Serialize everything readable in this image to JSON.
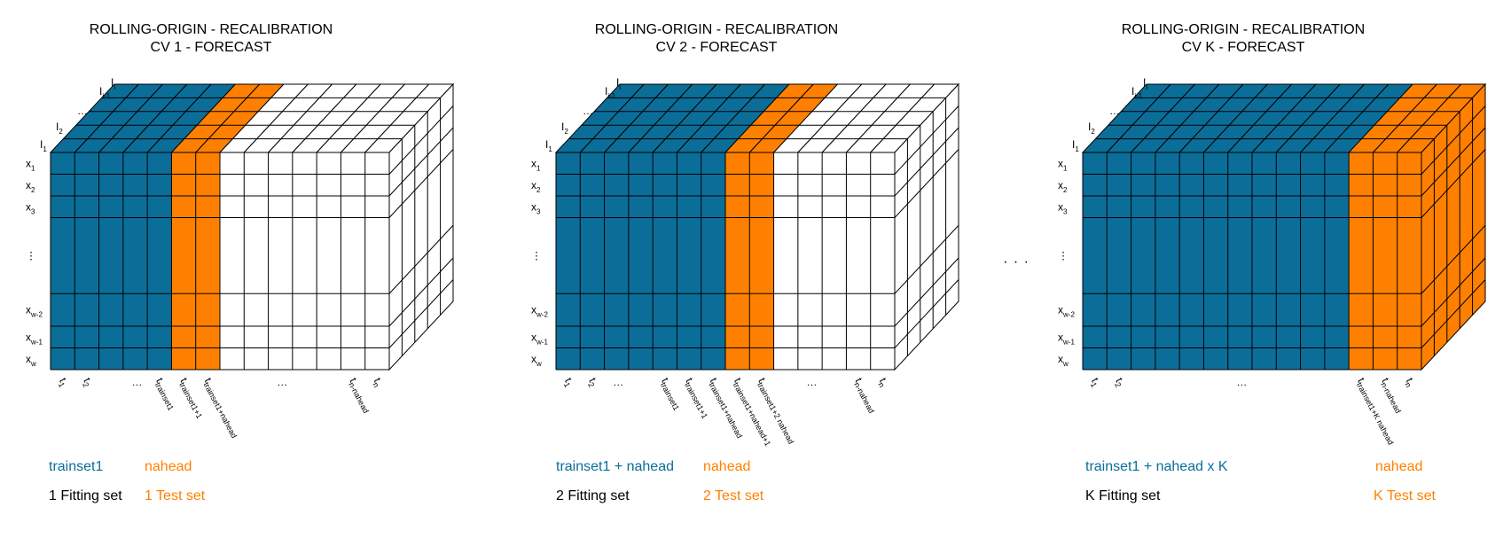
{
  "colors": {
    "train": "#0B6E99",
    "test": "#FF8000",
    "blank": "#FFFFFF",
    "line": "#000000"
  },
  "ellipsis": "…",
  "between_panels": "· · ·",
  "panels": [
    {
      "id": "cv1",
      "title_line1": "ROLLING-ORIGIN - RECALIBRATION",
      "title_line2": "CV 1 - FORECAST",
      "col_colors": [
        "train",
        "train",
        "train",
        "train",
        "train",
        "test",
        "test",
        "blank",
        "blank",
        "blank",
        "blank",
        "blank",
        "blank",
        "blank"
      ],
      "depth_labels": [
        {
          "main": "I",
          "sub": "i"
        },
        {
          "main": "I",
          "sub": "i-1"
        },
        {
          "main": "…",
          "sub": ""
        },
        {
          "main": "I",
          "sub": "2"
        },
        {
          "main": "I",
          "sub": "1"
        }
      ],
      "row_labels": [
        {
          "main": "x",
          "sub": "1"
        },
        {
          "main": "x",
          "sub": "2"
        },
        {
          "main": "x",
          "sub": "3"
        },
        {
          "main": "⋮",
          "sub": ""
        },
        {
          "main": "x",
          "sub": "w-2"
        },
        {
          "main": "x",
          "sub": "w-1"
        },
        {
          "main": "x",
          "sub": "w"
        }
      ],
      "time_labels": [
        {
          "col": 0,
          "main": "t",
          "sub": "1"
        },
        {
          "col": 1,
          "main": "t",
          "sub": "2"
        },
        {
          "col": 3,
          "main": "…",
          "sub": ""
        },
        {
          "col": 4,
          "main": "t",
          "sub": "trainset1"
        },
        {
          "col": 5,
          "main": "t",
          "sub": "trainset1+1"
        },
        {
          "col": 6,
          "main": "t",
          "sub": "trainset1+nahead"
        },
        {
          "col": 9,
          "main": "…",
          "sub": ""
        },
        {
          "col": 12,
          "main": "t",
          "sub": "n-nahead"
        },
        {
          "col": 13,
          "main": "t",
          "sub": "n"
        }
      ],
      "legend": {
        "train_label": "trainset1",
        "test_label": "nahead",
        "fit_label": "1 Fitting set",
        "test_set_label": "1 Test set"
      }
    },
    {
      "id": "cv2",
      "title_line1": "ROLLING-ORIGIN - RECALIBRATION",
      "title_line2": "CV 2 - FORECAST",
      "col_colors": [
        "train",
        "train",
        "train",
        "train",
        "train",
        "train",
        "train",
        "test",
        "test",
        "blank",
        "blank",
        "blank",
        "blank",
        "blank"
      ],
      "depth_labels": [
        {
          "main": "I",
          "sub": "i"
        },
        {
          "main": "I",
          "sub": "i-1"
        },
        {
          "main": "…",
          "sub": ""
        },
        {
          "main": "I",
          "sub": "2"
        },
        {
          "main": "I",
          "sub": "1"
        }
      ],
      "row_labels": [
        {
          "main": "x",
          "sub": "1"
        },
        {
          "main": "x",
          "sub": "2"
        },
        {
          "main": "x",
          "sub": "3"
        },
        {
          "main": "⋮",
          "sub": ""
        },
        {
          "main": "x",
          "sub": "w-2"
        },
        {
          "main": "x",
          "sub": "w-1"
        },
        {
          "main": "x",
          "sub": "w"
        }
      ],
      "time_labels": [
        {
          "col": 0,
          "main": "t",
          "sub": "1"
        },
        {
          "col": 1,
          "main": "t",
          "sub": "2"
        },
        {
          "col": 2,
          "main": "…",
          "sub": ""
        },
        {
          "col": 4,
          "main": "t",
          "sub": "trainset1"
        },
        {
          "col": 5,
          "main": "t",
          "sub": "trainset1+1"
        },
        {
          "col": 6,
          "main": "t",
          "sub": "trainset1+nahead"
        },
        {
          "col": 7,
          "main": "t",
          "sub": "trainset1+nahead+1"
        },
        {
          "col": 8,
          "main": "t",
          "sub": "trainset1+2 nahead"
        },
        {
          "col": 10,
          "main": "…",
          "sub": ""
        },
        {
          "col": 12,
          "main": "t",
          "sub": "n-nahead"
        },
        {
          "col": 13,
          "main": "t",
          "sub": "n"
        }
      ],
      "legend": {
        "train_label": "trainset1 + nahead",
        "test_label": "nahead",
        "fit_label": "2 Fitting set",
        "test_set_label": "2 Test set"
      }
    },
    {
      "id": "cvk",
      "title_line1": "ROLLING-ORIGIN - RECALIBRATION",
      "title_line2": "CV K - FORECAST",
      "col_colors": [
        "train",
        "train",
        "train",
        "train",
        "train",
        "train",
        "train",
        "train",
        "train",
        "train",
        "train",
        "test",
        "test",
        "test"
      ],
      "depth_labels": [
        {
          "main": "I",
          "sub": "i"
        },
        {
          "main": "I",
          "sub": "i-1"
        },
        {
          "main": "…",
          "sub": ""
        },
        {
          "main": "I",
          "sub": "2"
        },
        {
          "main": "I",
          "sub": "1"
        }
      ],
      "row_labels": [
        {
          "main": "x",
          "sub": "1"
        },
        {
          "main": "x",
          "sub": "2"
        },
        {
          "main": "x",
          "sub": "3"
        },
        {
          "main": "⋮",
          "sub": ""
        },
        {
          "main": "x",
          "sub": "w-2"
        },
        {
          "main": "x",
          "sub": "w-1"
        },
        {
          "main": "x",
          "sub": "w"
        }
      ],
      "time_labels": [
        {
          "col": 0,
          "main": "t",
          "sub": "1"
        },
        {
          "col": 1,
          "main": "t",
          "sub": "2"
        },
        {
          "col": 6,
          "main": "…",
          "sub": ""
        },
        {
          "col": 11,
          "main": "t",
          "sub": "trainset1+K nahead"
        },
        {
          "col": 12,
          "main": "t",
          "sub": "n-nahead"
        },
        {
          "col": 13,
          "main": "t",
          "sub": "n"
        }
      ],
      "legend": {
        "train_label": "trainset1 + nahead x K",
        "test_label": "nahead",
        "fit_label": "K Fitting set",
        "test_set_label": "K Test set"
      }
    }
  ]
}
